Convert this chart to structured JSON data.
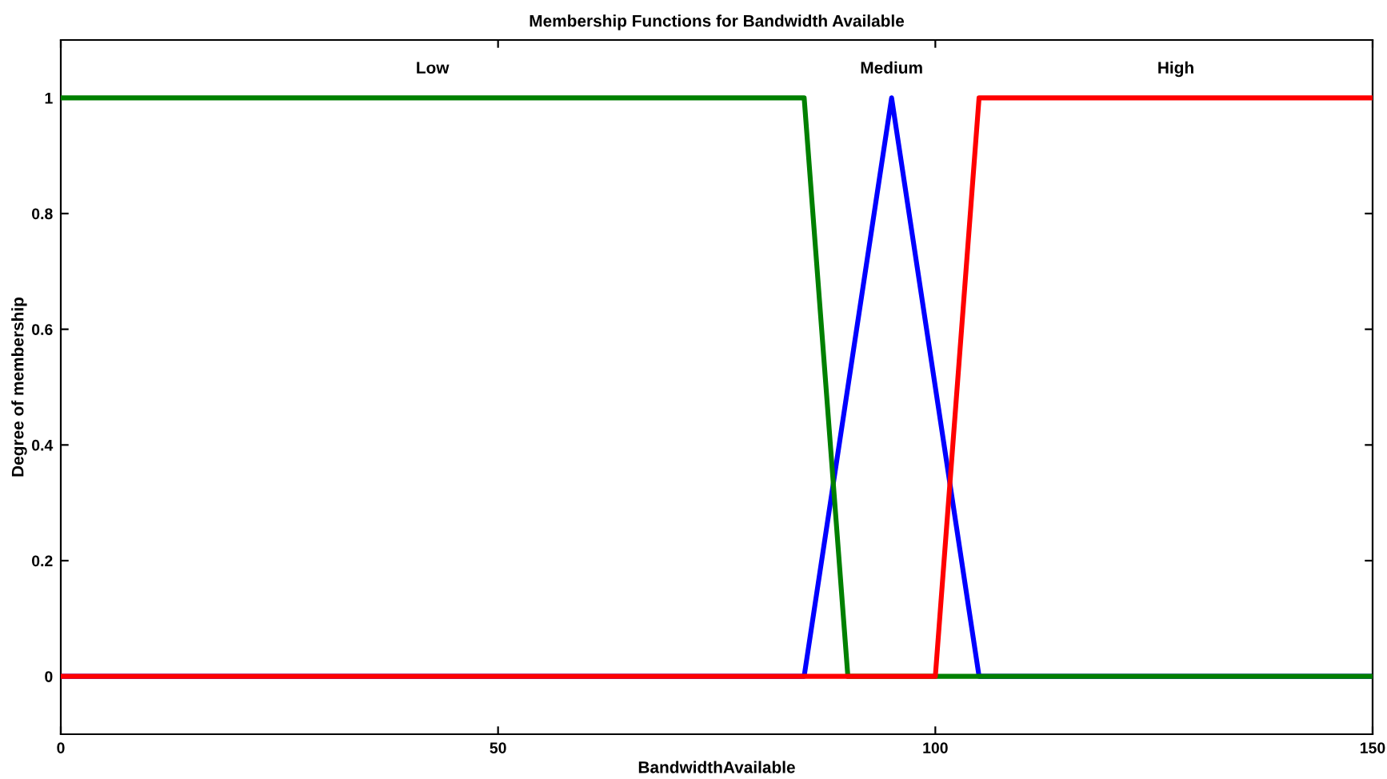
{
  "chart_data": {
    "type": "line",
    "title": "Membership Functions for Bandwidth Available",
    "xlabel": "BandwidthAvailable",
    "ylabel": "Degree of membership",
    "series": [
      {
        "name": "Medium",
        "color": "#0000ff",
        "x": [
          0,
          85,
          95,
          105,
          150
        ],
        "values": [
          0,
          0,
          1,
          0,
          0
        ]
      },
      {
        "name": "Low",
        "color": "#008000",
        "x": [
          0,
          85,
          90,
          150
        ],
        "values": [
          1,
          1,
          0,
          0
        ]
      },
      {
        "name": "High",
        "color": "#ff0000",
        "x": [
          0,
          100,
          105,
          150
        ],
        "values": [
          0,
          0,
          1,
          1
        ]
      }
    ],
    "xlim": [
      0,
      150
    ],
    "ylim": [
      -0.1,
      1.1
    ],
    "xticks": [
      0,
      50,
      100,
      150
    ],
    "yticks": [
      0,
      0.2,
      0.4,
      0.6,
      0.8,
      1
    ],
    "grid": false,
    "legend": false,
    "marker": "none",
    "line_style": "solid"
  }
}
